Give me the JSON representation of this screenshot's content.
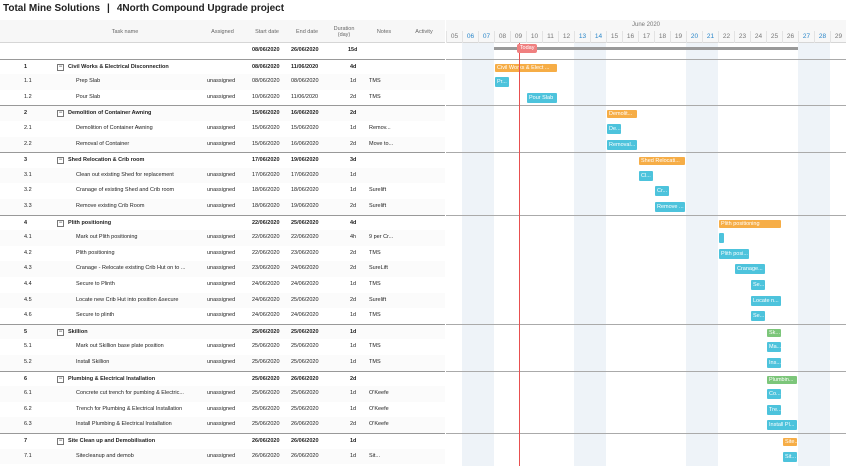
{
  "app": {
    "name": "Total Mine Solutions",
    "separator": "|",
    "project": "4North Compound Upgrade project"
  },
  "columns": {
    "task": "Task name",
    "assigned": "Assigned",
    "start": "Start date",
    "end": "End date",
    "duration": "Duration (day)",
    "notes": "Notes",
    "activity": "Activity"
  },
  "project_row": {
    "start": "08/06/2020",
    "end": "26/06/2020",
    "duration": "15d"
  },
  "rows": [
    {
      "id": "1",
      "name": "Civil Works & Electrical Disconnection",
      "assigned": "",
      "start": "08/06/2020",
      "end": "11/06/2020",
      "duration": "4d",
      "notes": "",
      "summary": true
    },
    {
      "id": "1.1",
      "name": "Prep Slab",
      "assigned": "unassigned",
      "start": "08/06/2020",
      "end": "08/06/2020",
      "duration": "1d",
      "notes": "TMS",
      "summary": false
    },
    {
      "id": "1.2",
      "name": "Pour Slab",
      "assigned": "unassigned",
      "start": "10/06/2020",
      "end": "11/06/2020",
      "duration": "2d",
      "notes": "TMS",
      "summary": false
    },
    {
      "id": "2",
      "name": "Demolition of Container Awning",
      "assigned": "",
      "start": "15/06/2020",
      "end": "16/06/2020",
      "duration": "2d",
      "notes": "",
      "summary": true
    },
    {
      "id": "2.1",
      "name": "Demolition of Container Awning",
      "assigned": "unassigned",
      "start": "15/06/2020",
      "end": "15/06/2020",
      "duration": "1d",
      "notes": "Remov...",
      "summary": false
    },
    {
      "id": "2.2",
      "name": "Removal of Container",
      "assigned": "unassigned",
      "start": "15/06/2020",
      "end": "16/06/2020",
      "duration": "2d",
      "notes": "Move to...",
      "summary": false
    },
    {
      "id": "3",
      "name": "Shed Relocation & Crib room",
      "assigned": "",
      "start": "17/06/2020",
      "end": "19/06/2020",
      "duration": "3d",
      "notes": "",
      "summary": true
    },
    {
      "id": "3.1",
      "name": "Clean out existing Shed for replacement",
      "assigned": "unassigned",
      "start": "17/06/2020",
      "end": "17/06/2020",
      "duration": "1d",
      "notes": "",
      "summary": false
    },
    {
      "id": "3.2",
      "name": "Cranage of existing Shed and Crib room",
      "assigned": "unassigned",
      "start": "18/06/2020",
      "end": "18/06/2020",
      "duration": "1d",
      "notes": "Surelift",
      "summary": false
    },
    {
      "id": "3.3",
      "name": "Remove existing Crib Room",
      "assigned": "unassigned",
      "start": "18/06/2020",
      "end": "19/06/2020",
      "duration": "2d",
      "notes": "Surelift",
      "summary": false
    },
    {
      "id": "4",
      "name": "Plith positioning",
      "assigned": "",
      "start": "22/06/2020",
      "end": "25/06/2020",
      "duration": "4d",
      "notes": "",
      "summary": true
    },
    {
      "id": "4.1",
      "name": "Mark out Plith positioning",
      "assigned": "unassigned",
      "start": "22/06/2020",
      "end": "22/06/2020",
      "duration": "4h",
      "notes": "9 per Cr...",
      "summary": false
    },
    {
      "id": "4.2",
      "name": "Plith positioning",
      "assigned": "unassigned",
      "start": "22/06/2020",
      "end": "23/06/2020",
      "duration": "2d",
      "notes": "TMS",
      "summary": false
    },
    {
      "id": "4.3",
      "name": "Cranage - Relocate existing Crib Hut on to ...",
      "assigned": "unassigned",
      "start": "23/06/2020",
      "end": "24/06/2020",
      "duration": "2d",
      "notes": "SureLift",
      "summary": false
    },
    {
      "id": "4.4",
      "name": "Secure to Plinth",
      "assigned": "unassigned",
      "start": "24/06/2020",
      "end": "24/06/2020",
      "duration": "1d",
      "notes": "TMS",
      "summary": false
    },
    {
      "id": "4.5",
      "name": "Locate new Crib Hut into position &secure",
      "assigned": "unassigned",
      "start": "24/06/2020",
      "end": "25/06/2020",
      "duration": "2d",
      "notes": "Surelift",
      "summary": false
    },
    {
      "id": "4.6",
      "name": "Secure to plinth",
      "assigned": "unassigned",
      "start": "24/06/2020",
      "end": "24/06/2020",
      "duration": "1d",
      "notes": "TMS",
      "summary": false
    },
    {
      "id": "5",
      "name": "Skillion",
      "assigned": "",
      "start": "25/06/2020",
      "end": "25/06/2020",
      "duration": "1d",
      "notes": "",
      "summary": true
    },
    {
      "id": "5.1",
      "name": "Mark out Skillion base plate position",
      "assigned": "unassigned",
      "start": "25/06/2020",
      "end": "25/06/2020",
      "duration": "1d",
      "notes": "TMS",
      "summary": false
    },
    {
      "id": "5.2",
      "name": "Install Skillion",
      "assigned": "unassigned",
      "start": "25/06/2020",
      "end": "25/06/2020",
      "duration": "1d",
      "notes": "TMS",
      "summary": false
    },
    {
      "id": "6",
      "name": "Plumbing & Electrical Installation",
      "assigned": "",
      "start": "25/06/2020",
      "end": "26/06/2020",
      "duration": "2d",
      "notes": "",
      "summary": true
    },
    {
      "id": "6.1",
      "name": "Concrete cut trench for pumbing & Electric...",
      "assigned": "unassigned",
      "start": "25/06/2020",
      "end": "25/06/2020",
      "duration": "1d",
      "notes": "O'Keefe",
      "summary": false
    },
    {
      "id": "6.2",
      "name": "Trench for Plumbing & Electrical Installation",
      "assigned": "unassigned",
      "start": "25/06/2020",
      "end": "25/06/2020",
      "duration": "1d",
      "notes": "O'Keefe",
      "summary": false
    },
    {
      "id": "6.3",
      "name": "Install Plumbing & Electrical Installation",
      "assigned": "unassigned",
      "start": "25/06/2020",
      "end": "26/06/2020",
      "duration": "2d",
      "notes": "O'Keefe",
      "summary": false
    },
    {
      "id": "7",
      "name": "Site Clean up and Demobilisation",
      "assigned": "",
      "start": "26/06/2020",
      "end": "26/06/2020",
      "duration": "1d",
      "notes": "",
      "summary": true
    },
    {
      "id": "7.1",
      "name": "Sitecleanup and demob",
      "assigned": "unassigned",
      "start": "26/06/2020",
      "end": "26/06/2020",
      "duration": "1d",
      "notes": "Sit...",
      "summary": false
    }
  ],
  "timeline": {
    "month": "June 2020",
    "days": [
      "05",
      "06",
      "07",
      "08",
      "09",
      "10",
      "11",
      "12",
      "13",
      "14",
      "15",
      "16",
      "17",
      "18",
      "19",
      "20",
      "21",
      "22",
      "23",
      "24",
      "25",
      "26",
      "27",
      "28",
      "29"
    ],
    "weekends": [
      "06",
      "07",
      "13",
      "14",
      "20",
      "21",
      "27",
      "28"
    ],
    "today_label": "Today",
    "today_day": "09"
  },
  "bars": [
    {
      "label": "Civil Works & Elect ...",
      "color": "orange"
    },
    {
      "label": "Pr...",
      "color": "teal"
    },
    {
      "label": "Pour Slab",
      "color": "teal"
    },
    {
      "label": "Demolit...",
      "color": "orange"
    },
    {
      "label": "De...",
      "color": "teal"
    },
    {
      "label": "Removal...",
      "color": "teal"
    },
    {
      "label": "Shed Relocati...",
      "color": "orange"
    },
    {
      "label": "Cl...",
      "color": "teal"
    },
    {
      "label": "Cr...",
      "color": "teal"
    },
    {
      "label": "Remove ...",
      "color": "teal"
    },
    {
      "label": "Plith positioning",
      "color": "orange"
    },
    {
      "label": "",
      "color": "teal"
    },
    {
      "label": "Plith posi...",
      "color": "teal"
    },
    {
      "label": "Cranage...",
      "color": "teal"
    },
    {
      "label": "Se...",
      "color": "teal"
    },
    {
      "label": "Locate n...",
      "color": "teal"
    },
    {
      "label": "Se...",
      "color": "teal"
    },
    {
      "label": "Sk...",
      "color": "green"
    },
    {
      "label": "Ma...",
      "color": "teal"
    },
    {
      "label": "Ins...",
      "color": "teal"
    },
    {
      "label": "Plumbin...",
      "color": "green"
    },
    {
      "label": "Co...",
      "color": "teal"
    },
    {
      "label": "Tre...",
      "color": "teal"
    },
    {
      "label": "Install Pl...",
      "color": "teal"
    },
    {
      "label": "Site...",
      "color": "orange"
    },
    {
      "label": "Sit...",
      "color": "teal"
    }
  ],
  "colors": {
    "task": "#4dc3dc",
    "parent": "#f6ad46",
    "parent_alt": "#7cc67a",
    "today": "#e85050",
    "weekend": "#eef3f8"
  }
}
